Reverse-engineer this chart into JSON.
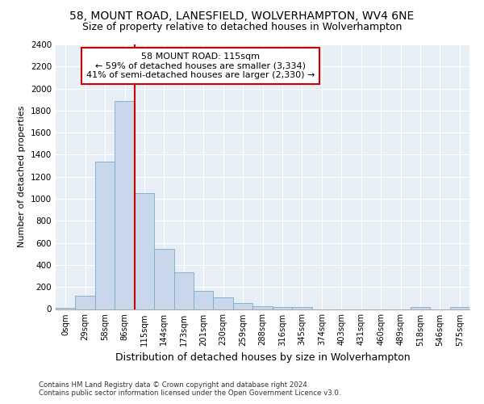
{
  "title": "58, MOUNT ROAD, LANESFIELD, WOLVERHAMPTON, WV4 6NE",
  "subtitle": "Size of property relative to detached houses in Wolverhampton",
  "xlabel": "Distribution of detached houses by size in Wolverhampton",
  "ylabel": "Number of detached properties",
  "footer_line1": "Contains HM Land Registry data © Crown copyright and database right 2024.",
  "footer_line2": "Contains public sector information licensed under the Open Government Licence v3.0.",
  "bar_labels": [
    "0sqm",
    "29sqm",
    "58sqm",
    "86sqm",
    "115sqm",
    "144sqm",
    "173sqm",
    "201sqm",
    "230sqm",
    "259sqm",
    "288sqm",
    "316sqm",
    "345sqm",
    "374sqm",
    "403sqm",
    "431sqm",
    "460sqm",
    "489sqm",
    "518sqm",
    "546sqm",
    "575sqm"
  ],
  "bar_values": [
    10,
    120,
    1340,
    1890,
    1050,
    545,
    335,
    165,
    105,
    58,
    25,
    20,
    18,
    0,
    0,
    0,
    0,
    0,
    15,
    0,
    15
  ],
  "bar_color": "#c8d8ea",
  "bar_edge_color": "#7aaac8",
  "vline_x_idx": 4,
  "vline_color": "#cc0000",
  "annotation_title": "58 MOUNT ROAD: 115sqm",
  "annotation_line1": "← 59% of detached houses are smaller (3,334)",
  "annotation_line2": "41% of semi-detached houses are larger (2,330) →",
  "annotation_box_color": "#ffffff",
  "annotation_box_edge": "#cc0000",
  "ylim": [
    0,
    2400
  ],
  "yticks": [
    0,
    200,
    400,
    600,
    800,
    1000,
    1200,
    1400,
    1600,
    1800,
    2000,
    2200,
    2400
  ],
  "background_color": "#ffffff",
  "plot_background": "#e8eef5",
  "title_fontsize": 10,
  "subtitle_fontsize": 9,
  "xlabel_fontsize": 9,
  "ylabel_fontsize": 8
}
